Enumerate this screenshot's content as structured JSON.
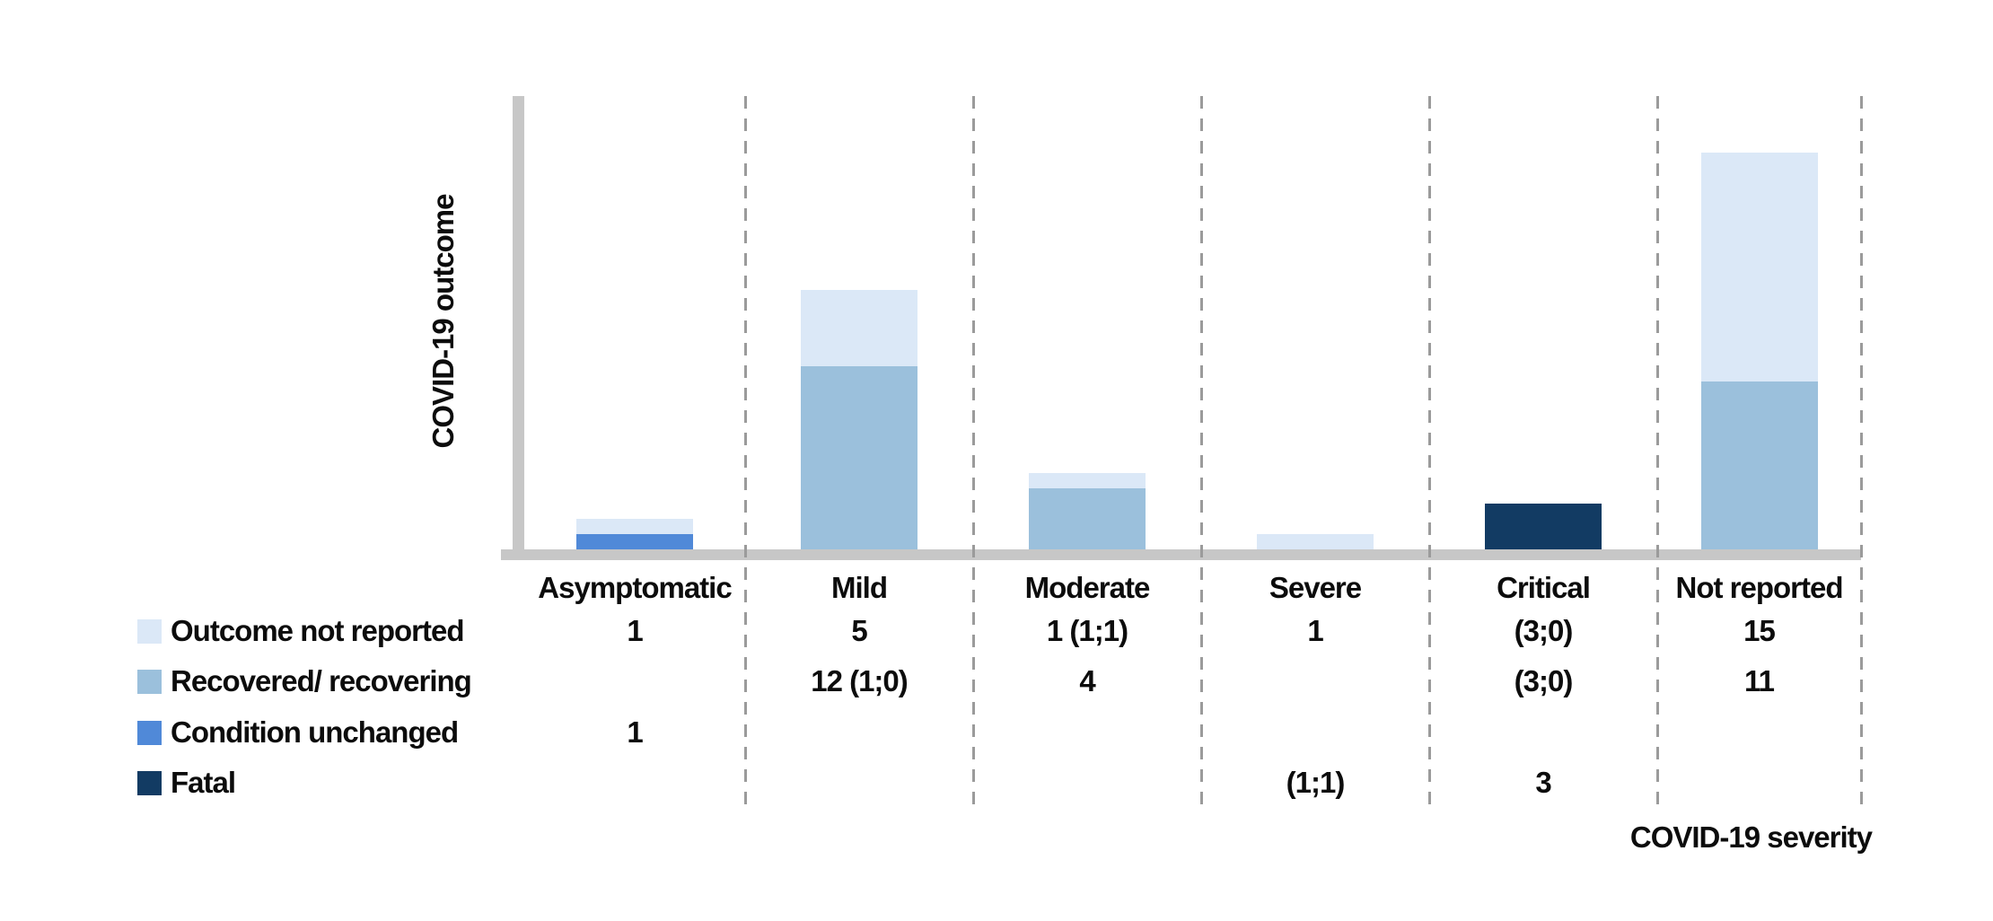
{
  "chart_data": {
    "type": "bar",
    "stacked": true,
    "xlabel": "COVID-19 severity",
    "ylabel": "COVID-19 outcome",
    "categories": [
      "Asymptomatic",
      "Mild",
      "Moderate",
      "Severe",
      "Critical",
      "Not reported"
    ],
    "series": [
      {
        "name": "Outcome not reported",
        "color": "#dbe8f7",
        "values": [
          1,
          5,
          1,
          1,
          0,
          15
        ]
      },
      {
        "name": "Recovered/ recovering",
        "color": "#9bc0dc",
        "values": [
          0,
          12,
          4,
          0,
          0,
          11
        ]
      },
      {
        "name": "Condition unchanged",
        "color": "#5089d8",
        "values": [
          1,
          0,
          0,
          0,
          0,
          0
        ]
      },
      {
        "name": "Fatal",
        "color": "#123b63",
        "values": [
          0,
          0,
          0,
          0,
          3,
          0
        ]
      }
    ],
    "value_table": {
      "rows": [
        {
          "series": "Outcome not reported",
          "cells": [
            "1",
            "5",
            "1 (1;1)",
            "1",
            "(3;0)",
            "15"
          ]
        },
        {
          "series": "Recovered/ recovering",
          "cells": [
            "",
            "12 (1;0)",
            "4",
            "",
            "(3;0)",
            "11"
          ]
        },
        {
          "series": "Condition unchanged",
          "cells": [
            "1",
            "",
            "",
            "",
            "",
            ""
          ]
        },
        {
          "series": "Fatal",
          "cells": [
            "",
            "",
            "",
            "(1;1)",
            "3",
            ""
          ]
        }
      ]
    },
    "layout_hints": {
      "legend_position": "bottom-left",
      "grid": "dashed-vertical",
      "axis_color": "#c7c7c7",
      "gridline_color": "#9b9b9b",
      "text_color": "#0c0c0c",
      "ylim": [
        0,
        30
      ]
    }
  }
}
